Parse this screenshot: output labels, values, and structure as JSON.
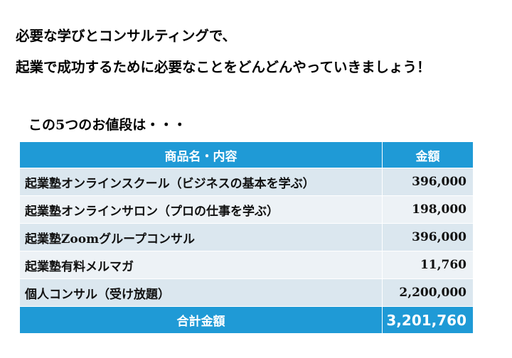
{
  "heading": {
    "line1": "必要な学びとコンサルティングで、",
    "line2": "起業で成功するために必要なことをどんどんやっていきましょう！"
  },
  "price_intro": "この5つのお値段は・・・",
  "table": {
    "columns": [
      "商品名・内容",
      "金額"
    ],
    "rows": [
      {
        "name": "起業塾オンラインスクール（ビジネスの基本を学ぶ）",
        "price": "396,000"
      },
      {
        "name": "起業塾オンラインサロン（プロの仕事を学ぶ）",
        "price": "198,000"
      },
      {
        "name": "起業塾Zoomグループコンサル",
        "price": "396,000"
      },
      {
        "name": "起業塾有料メルマガ",
        "price": "11,760"
      },
      {
        "name": "個人コンサル（受け放題）",
        "price": "2,200,000"
      }
    ],
    "total_label": "合計金額",
    "total_value": "3,201,760"
  },
  "colors": {
    "header_blue": "#1f9ad6",
    "row_odd": "#dbe7ef",
    "row_even": "#edf2f6"
  }
}
